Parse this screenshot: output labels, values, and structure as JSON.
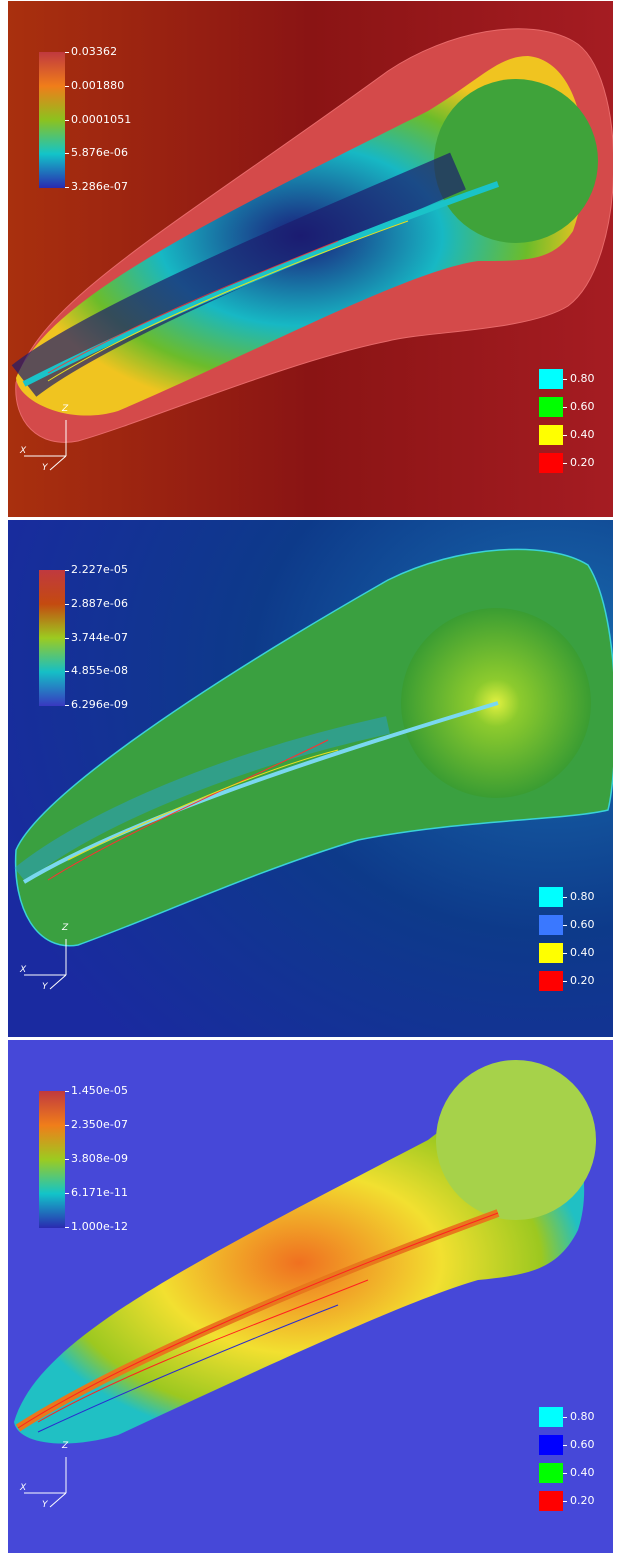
{
  "panels": [
    {
      "id": "density",
      "colorbar": {
        "ticks": [
          "0.03362",
          "0.001880",
          "0.0001051",
          "5.876e-06",
          "3.286e-07"
        ],
        "colors": [
          "#c0393f",
          "#f07d1a",
          "#8cc21e",
          "#12c4c9",
          "#2a2ab0"
        ]
      },
      "legend": [
        {
          "label": "0.80",
          "color": "#00ffff"
        },
        {
          "label": "0.60",
          "color": "#00ff00"
        },
        {
          "label": "0.40",
          "color": "#ffff00"
        },
        {
          "label": "0.20",
          "color": "#ff0000"
        }
      ],
      "axes": {
        "z": "Z",
        "x": "X",
        "y": "Y"
      },
      "background": [
        "#a82a10",
        "#8e1515",
        "#a31a1e"
      ]
    },
    {
      "id": "pressure",
      "colorbar": {
        "ticks": [
          "2.227e-05",
          "2.887e-06",
          "3.744e-07",
          "4.855e-08",
          "6.296e-09"
        ],
        "colors": [
          "#c0393f",
          "#c44a10",
          "#9ccb20",
          "#15bfc6",
          "#3838c0"
        ]
      },
      "legend": [
        {
          "label": "0.80",
          "color": "#00ffff"
        },
        {
          "label": "0.60",
          "color": "#3a78ff"
        },
        {
          "label": "0.40",
          "color": "#ffff00"
        },
        {
          "label": "0.20",
          "color": "#ff0000"
        }
      ],
      "axes": {
        "z": "Z",
        "x": "X",
        "y": "Y"
      },
      "background": [
        "#1c2fa0",
        "#0a2a6a",
        "#0e5da0"
      ]
    },
    {
      "id": "tracer",
      "colorbar": {
        "ticks": [
          "1.450e-05",
          "2.350e-07",
          "3.808e-09",
          "6.171e-11",
          "1.000e-12"
        ],
        "colors": [
          "#c0393f",
          "#f07d1a",
          "#9ccb20",
          "#12c4c9",
          "#2a2ab0"
        ]
      },
      "legend": [
        {
          "label": "0.80",
          "color": "#00ffff"
        },
        {
          "label": "0.60",
          "color": "#0000ff"
        },
        {
          "label": "0.40",
          "color": "#00ff00"
        },
        {
          "label": "0.20",
          "color": "#ff0000"
        }
      ],
      "axes": {
        "z": "Z",
        "x": "X",
        "y": "Y"
      },
      "background": [
        "#4648d8",
        "#4648d8",
        "#4648d8"
      ]
    }
  ]
}
